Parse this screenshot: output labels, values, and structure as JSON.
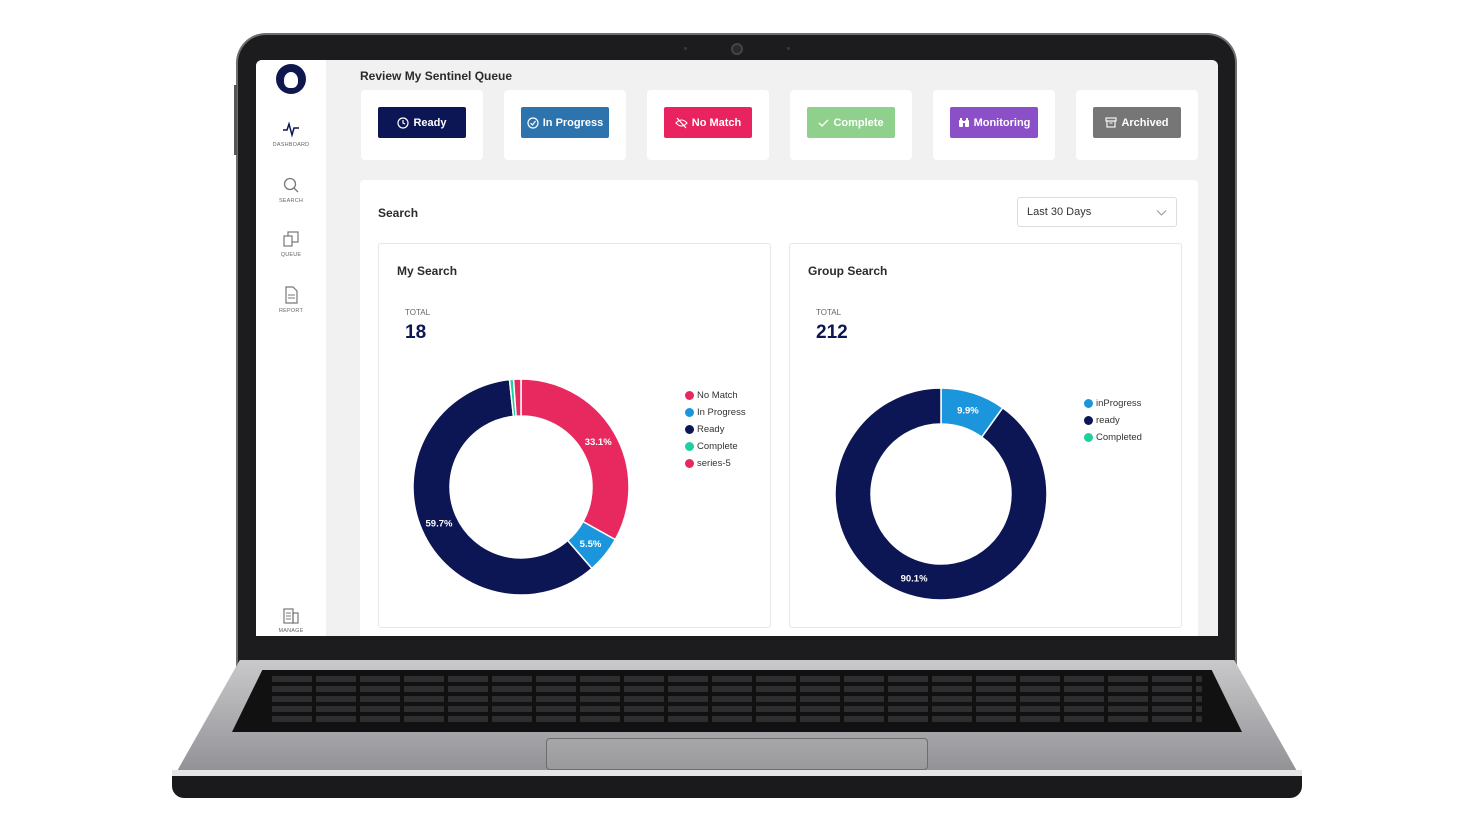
{
  "header": {
    "title": "Review My Sentinel Queue"
  },
  "sidebar": {
    "items": [
      {
        "label": "DASHBOARD",
        "icon": "pulse-icon"
      },
      {
        "label": "SEARCH",
        "icon": "search-icon"
      },
      {
        "label": "QUEUE",
        "icon": "queue-icon"
      },
      {
        "label": "REPORT",
        "icon": "document-icon"
      },
      {
        "label": "MANAGE",
        "icon": "building-icon"
      }
    ]
  },
  "statuses": [
    {
      "label": "Ready",
      "color": "#0c1654",
      "icon": "clock-icon"
    },
    {
      "label": "In Progress",
      "color": "#2d73ad",
      "icon": "check-circle-icon"
    },
    {
      "label": "No Match",
      "color": "#e8235f",
      "icon": "eye-off-icon"
    },
    {
      "label": "Complete",
      "color": "#8fd08d",
      "icon": "check-icon"
    },
    {
      "label": "Monitoring",
      "color": "#8b4fc7",
      "icon": "binoculars-icon"
    },
    {
      "label": "Archived",
      "color": "#767676",
      "icon": "archive-icon"
    }
  ],
  "search": {
    "title": "Search",
    "range": {
      "selected": "Last 30 Days"
    }
  },
  "cards": {
    "my": {
      "title": "My Search",
      "total_label": "TOTAL",
      "total": "18"
    },
    "group": {
      "title": "Group Search",
      "total_label": "TOTAL",
      "total": "212"
    }
  },
  "chart_data": [
    {
      "type": "pie",
      "title": "My Search",
      "donut": true,
      "series": [
        {
          "name": "No Match",
          "value": 33.1,
          "color": "#e8295f",
          "label": "33.1%"
        },
        {
          "name": "In Progress",
          "value": 5.5,
          "color": "#1b96dd",
          "label": "5.5%"
        },
        {
          "name": "Ready",
          "value": 59.7,
          "color": "#0c1654",
          "label": "59.7%"
        },
        {
          "name": "Complete",
          "value": 0.6,
          "color": "#1ecfa0",
          "label": ""
        },
        {
          "name": "series-5",
          "value": 1.1,
          "color": "#e8295f",
          "label": ""
        }
      ],
      "legend": "right"
    },
    {
      "type": "pie",
      "title": "Group Search",
      "donut": true,
      "series": [
        {
          "name": "inProgress",
          "value": 9.9,
          "color": "#1b96dd",
          "label": "9.9%"
        },
        {
          "name": "ready",
          "value": 90.1,
          "color": "#0c1654",
          "label": "90.1%"
        },
        {
          "name": "Completed",
          "value": 0,
          "color": "#1ecfa0",
          "label": ""
        }
      ],
      "legend": "right"
    }
  ]
}
